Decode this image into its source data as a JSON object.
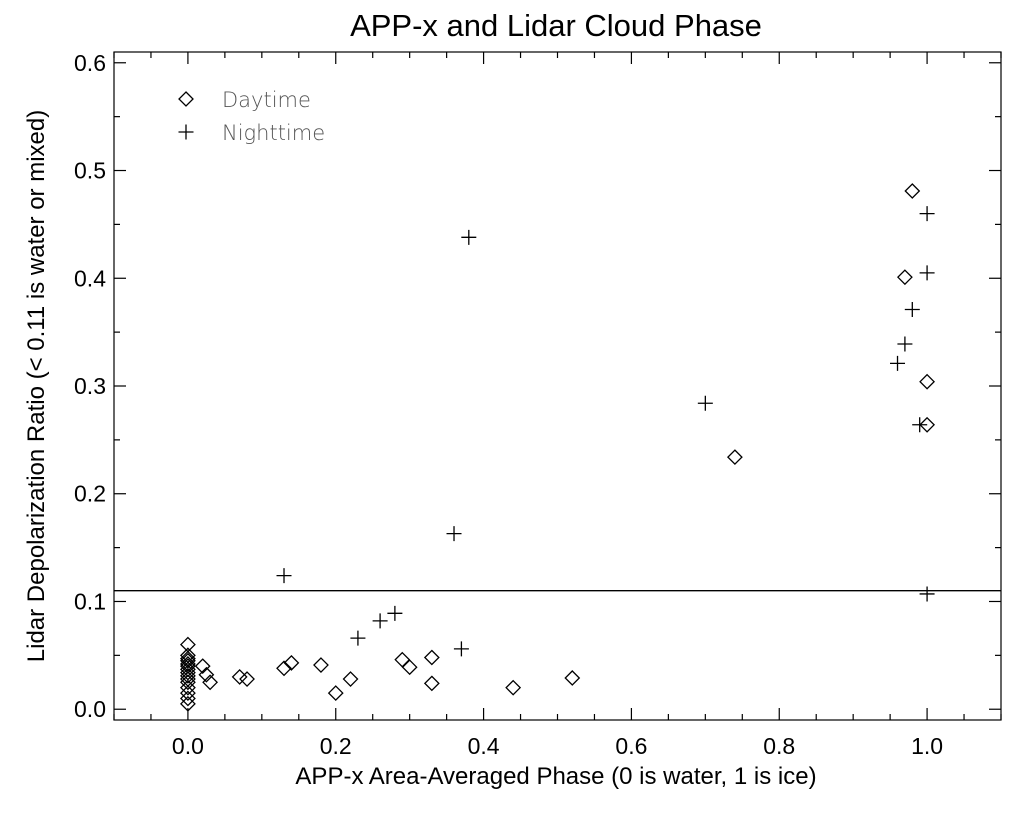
{
  "chart_data": {
    "type": "scatter",
    "title": "APP-x and Lidar Cloud Phase",
    "xlabel": "APP-x Area-Averaged Phase (0 is water, 1 is ice)",
    "ylabel": "Lidar Depolarization Ratio (< 0.11 is water or mixed)",
    "xlim": [
      -0.1,
      1.1
    ],
    "ylim": [
      -0.01,
      0.61
    ],
    "xticks": [
      0.0,
      0.2,
      0.4,
      0.6,
      0.8,
      1.0
    ],
    "xtick_labels": [
      "0.0",
      "0.2",
      "0.4",
      "0.6",
      "0.8",
      "1.0"
    ],
    "yticks": [
      0.0,
      0.1,
      0.2,
      0.3,
      0.4,
      0.5,
      0.6
    ],
    "ytick_labels": [
      "0.0",
      "0.1",
      "0.2",
      "0.3",
      "0.4",
      "0.5",
      "0.6"
    ],
    "grid": false,
    "legend_position": "top-left",
    "reference_line": {
      "y": 0.11,
      "orientation": "horizontal"
    },
    "series": [
      {
        "name": "Daytime",
        "marker": "diamond",
        "color": "#000000",
        "points": [
          [
            0.0,
            0.06
          ],
          [
            0.0,
            0.05
          ],
          [
            0.0,
            0.047
          ],
          [
            0.0,
            0.045
          ],
          [
            0.0,
            0.042
          ],
          [
            0.0,
            0.04
          ],
          [
            0.0,
            0.037
          ],
          [
            0.0,
            0.034
          ],
          [
            0.0,
            0.031
          ],
          [
            0.0,
            0.028
          ],
          [
            0.0,
            0.025
          ],
          [
            0.0,
            0.02
          ],
          [
            0.0,
            0.015
          ],
          [
            0.0,
            0.01
          ],
          [
            0.0,
            0.005
          ],
          [
            0.02,
            0.04
          ],
          [
            0.025,
            0.032
          ],
          [
            0.03,
            0.025
          ],
          [
            0.07,
            0.03
          ],
          [
            0.08,
            0.028
          ],
          [
            0.13,
            0.038
          ],
          [
            0.14,
            0.043
          ],
          [
            0.18,
            0.041
          ],
          [
            0.2,
            0.015
          ],
          [
            0.22,
            0.028
          ],
          [
            0.29,
            0.046
          ],
          [
            0.3,
            0.039
          ],
          [
            0.33,
            0.048
          ],
          [
            0.33,
            0.024
          ],
          [
            0.44,
            0.02
          ],
          [
            0.52,
            0.029
          ],
          [
            0.74,
            0.234
          ],
          [
            0.97,
            0.401
          ],
          [
            0.98,
            0.481
          ],
          [
            1.0,
            0.304
          ],
          [
            1.0,
            0.264
          ]
        ]
      },
      {
        "name": "Nighttime",
        "marker": "plus",
        "color": "#000000",
        "points": [
          [
            0.13,
            0.124
          ],
          [
            0.23,
            0.066
          ],
          [
            0.26,
            0.082
          ],
          [
            0.28,
            0.089
          ],
          [
            0.36,
            0.163
          ],
          [
            0.37,
            0.056
          ],
          [
            0.38,
            0.438
          ],
          [
            0.7,
            0.284
          ],
          [
            0.96,
            0.321
          ],
          [
            0.97,
            0.339
          ],
          [
            0.98,
            0.371
          ],
          [
            0.99,
            0.264
          ],
          [
            1.0,
            0.46
          ],
          [
            1.0,
            0.405
          ],
          [
            1.0,
            0.107
          ]
        ]
      }
    ]
  }
}
